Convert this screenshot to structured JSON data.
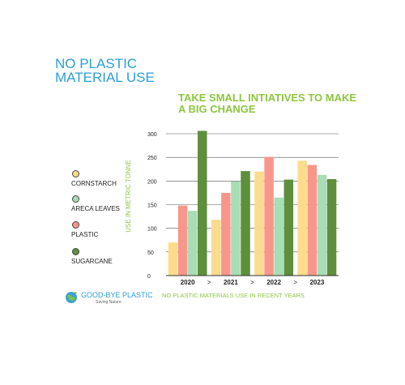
{
  "header": {
    "title": "NO PLASTIC MATERIAL USE"
  },
  "legend": {
    "items": [
      {
        "label": "CORNSTARCH",
        "color": "#fcdb8c"
      },
      {
        "label": "ARECA LEAVES",
        "color": "#a8ddb5"
      },
      {
        "label": "PLASTIC",
        "color": "#f9968b"
      },
      {
        "label": "SUGARCANE",
        "color": "#5e8f3c"
      }
    ]
  },
  "brand": {
    "name": "GOOD-BYE PLASTIC",
    "tagline": "Saving Nature",
    "icon": "globe-icon"
  },
  "footer": {
    "caption": "NO PLASTIC MATERIALS USE IN RECENT YEARS"
  },
  "chart_data": {
    "type": "bar",
    "title": "TAKE SMALL INTIATIVES TO MAKE A BIG CHANGE",
    "xlabel": "",
    "ylabel": "USE IN METRIC TONNE",
    "categories": [
      "2020",
      "2021",
      "2022",
      "2023"
    ],
    "separator": ">",
    "yticks": [
      0,
      50,
      100,
      150,
      200,
      250,
      300
    ],
    "ylim": [
      0,
      300
    ],
    "grid": true,
    "series": [
      {
        "name": "CORNSTARCH",
        "color": "#fcdb8c",
        "values": [
          70,
          118,
          220,
          243
        ]
      },
      {
        "name": "PLASTIC",
        "color": "#f9968b",
        "values": [
          148,
          175,
          251,
          234
        ]
      },
      {
        "name": "ARECA LEAVES",
        "color": "#a8ddb5",
        "values": [
          137,
          199,
          165,
          213
        ]
      },
      {
        "name": "SUGARCANE",
        "color": "#5e8f3c",
        "values": [
          306,
          221,
          203,
          204
        ]
      }
    ]
  }
}
